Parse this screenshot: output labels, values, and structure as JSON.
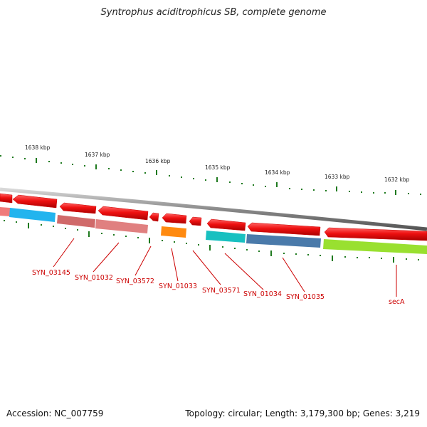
{
  "title": "Syntrophus aciditrophicus SB, complete genome",
  "footer": {
    "accession": "Accession: NC_007759",
    "summary": "Topology: circular; Length: 3,179,300 bp; Genes: 3,219"
  },
  "scale": {
    "labels": [
      "1638 kbp",
      "1637 kbp",
      "1636 kbp",
      "1635 kbp",
      "1634 kbp",
      "1633 kbp",
      "1632 kbp"
    ]
  },
  "genes": [
    "SYN_03145",
    "SYN_01032",
    "SYN_03572",
    "SYN_01033",
    "SYN_03571",
    "SYN_01034",
    "SYN_01035",
    "secA"
  ],
  "colors": {
    "backbone": "#8a8a8a",
    "cds": "#ee1111",
    "tick": "#1f7a1f",
    "label": "#cc0000",
    "features": [
      "#f07a7a",
      "#22b4ee",
      "#d06a6a",
      "#e08080",
      "#ff8a10",
      "#18c0c0",
      "#4a7aaa",
      "#99e030"
    ]
  }
}
